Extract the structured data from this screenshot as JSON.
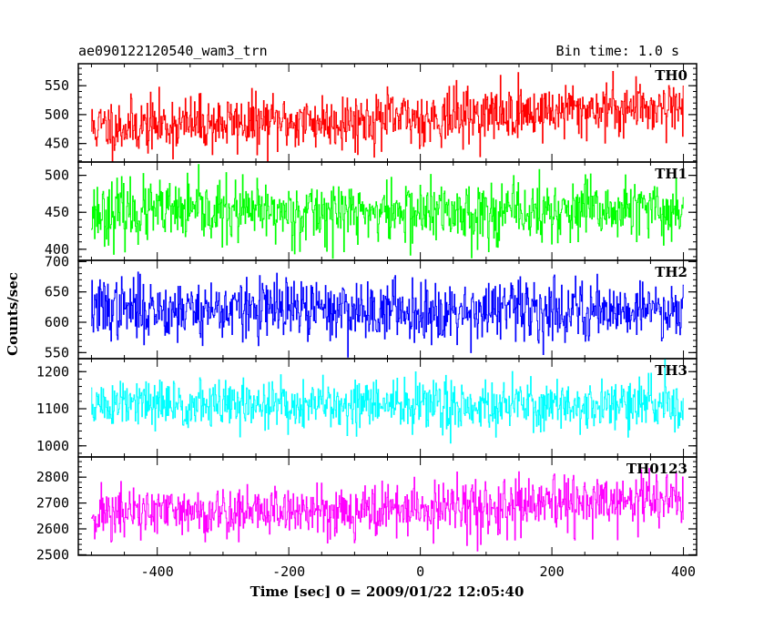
{
  "header": {
    "left_title": "ae090122120540_wam3_trn",
    "right_title": "Bin time: 1.0 s"
  },
  "chart_data": {
    "type": "line",
    "xlabel": "Time [sec] 0 = 2009/01/22 12:05:40",
    "ylabel": "Counts/sec",
    "xlim": [
      -520,
      420
    ],
    "x_range": [
      -500,
      400
    ],
    "x_step": 1.0,
    "xticks": [
      -400,
      -200,
      0,
      200,
      400
    ],
    "panels": [
      {
        "name": "TH0",
        "color": "#ff0000",
        "ylim": [
          418,
          588
        ],
        "yticks": [
          450,
          500,
          550
        ],
        "trend_x": [
          -500,
          -400,
          -300,
          -200,
          -100,
          0,
          100,
          200,
          300,
          400
        ],
        "trend_y": [
          478,
          482,
          485,
          487,
          490,
          494,
          500,
          506,
          512,
          515
        ],
        "noise": 24,
        "seed": 11
      },
      {
        "name": "TH1",
        "color": "#00ff00",
        "ylim": [
          385,
          518
        ],
        "yticks": [
          400,
          450,
          500
        ],
        "trend_x": [
          -500,
          -400,
          -300,
          -200,
          -100,
          0,
          100,
          200,
          300,
          400
        ],
        "trend_y": [
          450,
          450,
          450,
          450,
          450,
          450,
          450,
          450,
          452,
          452
        ],
        "noise": 21,
        "seed": 23
      },
      {
        "name": "TH2",
        "color": "#0000ff",
        "ylim": [
          540,
          702
        ],
        "yticks": [
          550,
          600,
          650,
          700
        ],
        "trend_x": [
          -500,
          -400,
          -300,
          -200,
          -100,
          0,
          100,
          200,
          300,
          400
        ],
        "trend_y": [
          622,
          622,
          621,
          621,
          620,
          620,
          620,
          620,
          622,
          622
        ],
        "noise": 25,
        "seed": 37
      },
      {
        "name": "TH3",
        "color": "#00ffff",
        "ylim": [
          970,
          1235
        ],
        "yticks": [
          1000,
          1100,
          1200
        ],
        "trend_x": [
          -500,
          -400,
          -300,
          -200,
          -100,
          0,
          100,
          200,
          300,
          400
        ],
        "trend_y": [
          1110,
          1110,
          1110,
          1110,
          1110,
          1110,
          1110,
          1110,
          1110,
          1110
        ],
        "noise": 34,
        "seed": 51
      },
      {
        "name": "TH0123",
        "color": "#ff00ff",
        "ylim": [
          2498,
          2878
        ],
        "yticks": [
          2500,
          2600,
          2700,
          2800
        ],
        "trend_x": [
          -500,
          -400,
          -300,
          -200,
          -100,
          0,
          100,
          200,
          300,
          400
        ],
        "trend_y": [
          2660,
          2662,
          2665,
          2670,
          2672,
          2675,
          2680,
          2690,
          2705,
          2720
        ],
        "noise": 52,
        "seed": 71
      }
    ]
  }
}
